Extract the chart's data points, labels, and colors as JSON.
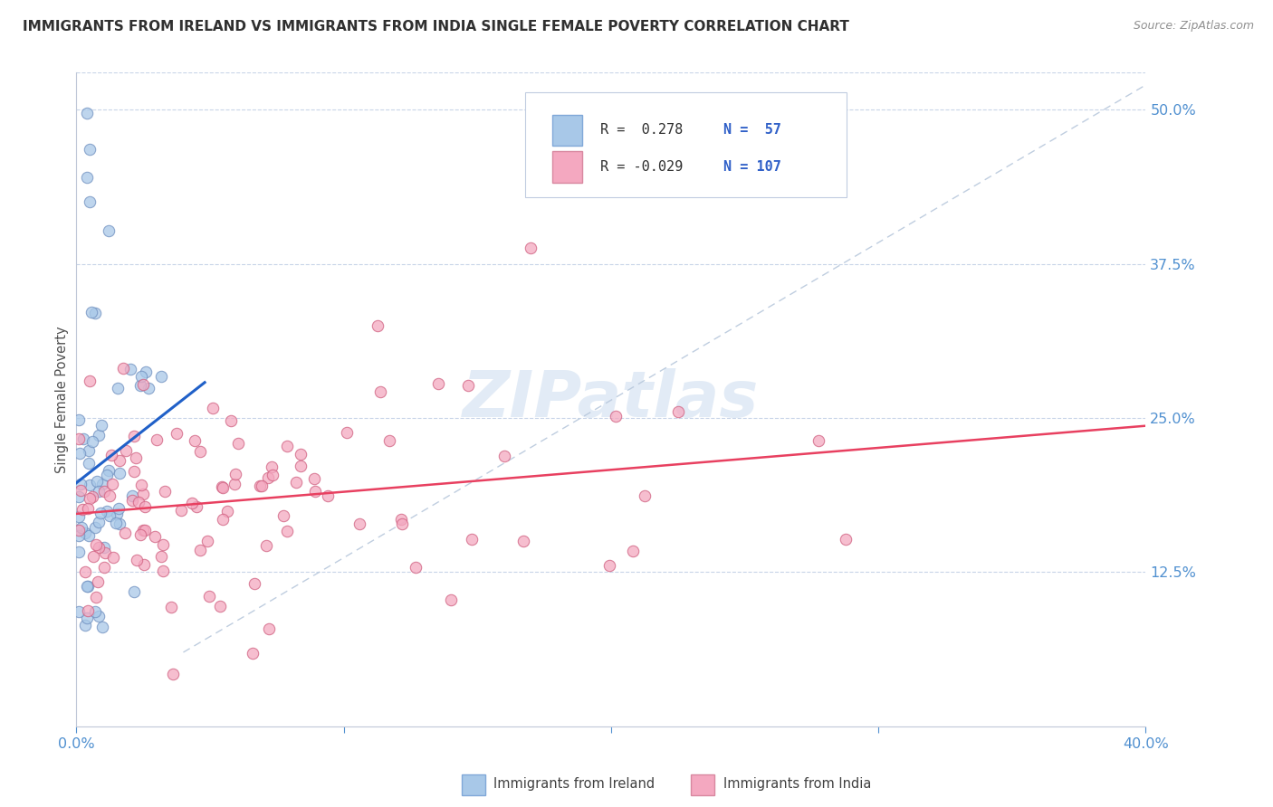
{
  "title": "IMMIGRANTS FROM IRELAND VS IMMIGRANTS FROM INDIA SINGLE FEMALE POVERTY CORRELATION CHART",
  "source": "Source: ZipAtlas.com",
  "ylabel": "Single Female Poverty",
  "yticks_labels": [
    "12.5%",
    "25.0%",
    "37.5%",
    "50.0%"
  ],
  "ytick_vals": [
    0.125,
    0.25,
    0.375,
    0.5
  ],
  "xlim": [
    0.0,
    0.4
  ],
  "ylim": [
    0.0,
    0.53
  ],
  "legend_r1": "R =  0.278",
  "legend_n1": "N =  57",
  "legend_r2": "R = -0.029",
  "legend_n2": "N = 107",
  "color_ireland": "#a8c8e8",
  "color_india": "#f4a8c0",
  "trendline_ireland_color": "#2060c8",
  "trendline_india_color": "#e84060",
  "watermark_color": "#d0dff0",
  "tick_color": "#5090d0",
  "legend_text_color": "#303030",
  "legend_n_color": "#3060c8",
  "source_color": "#909090",
  "title_color": "#303030"
}
